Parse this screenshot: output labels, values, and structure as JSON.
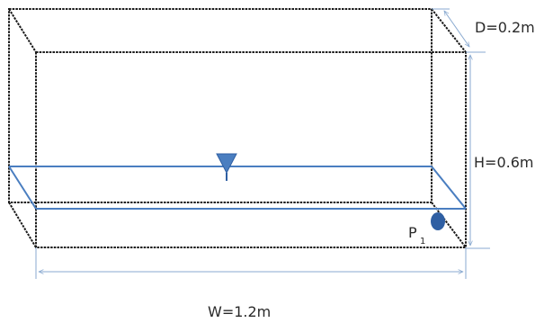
{
  "labels": {
    "depth": "D=0.2m",
    "height": "H=0.6m",
    "width": "W=1.2m",
    "point_main": "P",
    "point_sub": "1"
  },
  "colors": {
    "edge": "#1a1a1a",
    "water": "#4a7ec0",
    "dimension": "#8aaad0",
    "point": "#2f5fa3"
  },
  "icons": {
    "water_surface": "inverted-triangle-icon",
    "pressure_point": "dot-icon"
  }
}
